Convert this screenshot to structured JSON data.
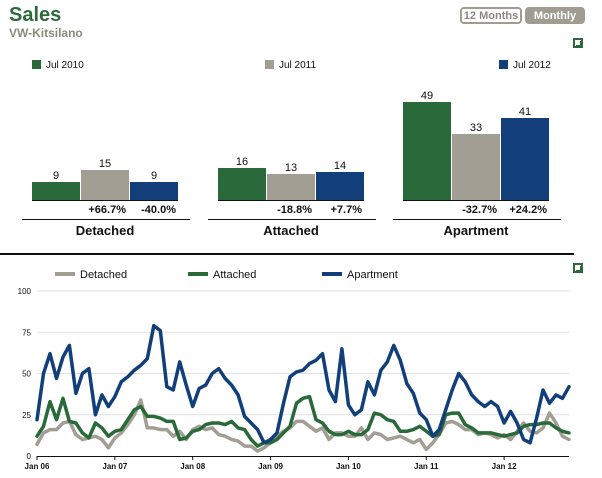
{
  "header": {
    "title": "Sales",
    "subtitle": "VW-Kitsilano"
  },
  "toggle": {
    "option_12": "12 Months",
    "option_monthly": "Monthly",
    "selected": "Monthly"
  },
  "icons": {
    "expand": "expand-icon"
  },
  "colors": {
    "green": "#2a6a3a",
    "gray": "#a39e94",
    "blue": "#123f7a",
    "title": "#2d6a3a"
  },
  "chart_data": [
    {
      "type": "bar",
      "categories": [
        "Detached",
        "Attached",
        "Apartment"
      ],
      "series": [
        {
          "name": "Jul 2010",
          "color": "#2a6a3a",
          "values": [
            9,
            16,
            49
          ]
        },
        {
          "name": "Jul 2011",
          "color": "#a39e94",
          "values": [
            15,
            13,
            33
          ]
        },
        {
          "name": "Jul 2012",
          "color": "#123f7a",
          "values": [
            9,
            14,
            41
          ]
        }
      ],
      "change_labels": [
        [
          "+66.7%",
          "-40.0%"
        ],
        [
          "-18.8%",
          "+7.7%"
        ],
        [
          "-32.7%",
          "+24.2%"
        ]
      ]
    },
    {
      "type": "line",
      "x_ticks": [
        "Jan 06",
        "Jan 07",
        "Jan 08",
        "Jan 09",
        "Jan 10",
        "Jan 11",
        "Jan 12"
      ],
      "x_start": "2006-01",
      "ylim": [
        0,
        100
      ],
      "y_ticks": [
        0,
        25,
        50,
        75,
        100
      ],
      "series": [
        {
          "name": "Detached",
          "color": "#a39e94",
          "values": [
            7,
            14,
            16,
            16,
            20,
            21,
            13,
            10,
            11,
            12,
            10,
            5,
            11,
            14,
            19,
            25,
            34,
            17,
            17,
            16,
            16,
            12,
            15,
            10,
            16,
            18,
            16,
            17,
            13,
            12,
            10,
            9,
            6,
            6,
            3,
            5,
            8,
            12,
            15,
            17,
            21,
            21,
            18,
            15,
            17,
            10,
            14,
            14,
            12,
            12,
            17,
            10,
            14,
            13,
            10,
            11,
            12,
            10,
            8,
            10,
            4,
            8,
            13,
            20,
            21,
            19,
            16,
            16,
            13,
            14,
            13,
            11,
            13,
            10,
            15,
            20,
            15,
            14,
            17,
            26,
            20,
            12,
            10
          ]
        },
        {
          "name": "Attached",
          "color": "#2a6a3a",
          "values": [
            12,
            18,
            33,
            22,
            35,
            21,
            20,
            14,
            11,
            20,
            17,
            12,
            15,
            16,
            22,
            28,
            30,
            24,
            24,
            23,
            21,
            21,
            10,
            11,
            15,
            16,
            19,
            20,
            20,
            19,
            21,
            17,
            16,
            10,
            6,
            8,
            8,
            10,
            14,
            18,
            32,
            35,
            36,
            22,
            20,
            15,
            13,
            13,
            15,
            13,
            13,
            16,
            26,
            25,
            22,
            21,
            15,
            15,
            16,
            18,
            15,
            12,
            13,
            25,
            26,
            26,
            19,
            17,
            14,
            14,
            14,
            13,
            12,
            13,
            14,
            18,
            19,
            19,
            20,
            20,
            17,
            15,
            14
          ]
        },
        {
          "name": "Apartment",
          "color": "#123f7a",
          "values": [
            22,
            50,
            62,
            47,
            60,
            67,
            38,
            50,
            53,
            25,
            37,
            30,
            36,
            45,
            48,
            52,
            55,
            59,
            79,
            76,
            42,
            40,
            57,
            43,
            30,
            41,
            43,
            50,
            53,
            47,
            43,
            37,
            24,
            20,
            16,
            8,
            10,
            14,
            32,
            48,
            51,
            52,
            56,
            58,
            62,
            40,
            33,
            65,
            31,
            25,
            28,
            45,
            37,
            52,
            57,
            67,
            58,
            44,
            38,
            26,
            22,
            12,
            16,
            28,
            40,
            50,
            45,
            37,
            33,
            30,
            33,
            30,
            20,
            27,
            20,
            10,
            8,
            23,
            40,
            32,
            37,
            35,
            42
          ]
        }
      ]
    }
  ]
}
